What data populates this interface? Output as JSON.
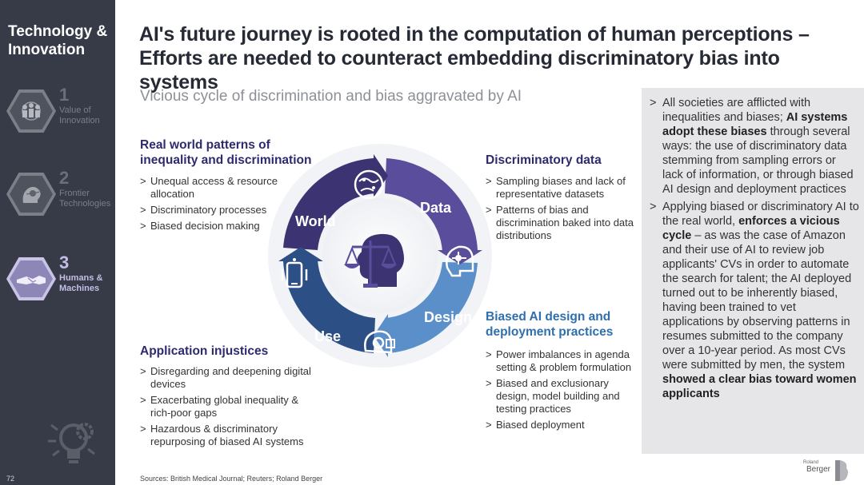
{
  "sidebar": {
    "title": "Technology & Innovation",
    "items": [
      {
        "num": "1",
        "label": "Value of Innovation",
        "active": false,
        "icon": "people-world-icon"
      },
      {
        "num": "2",
        "label": "Frontier Technologies",
        "active": false,
        "icon": "ai-brain-icon"
      },
      {
        "num": "3",
        "label": "Humans & Machines",
        "active": true,
        "icon": "handshake-icon"
      }
    ],
    "page_number": "72"
  },
  "header": {
    "title": "AI's future journey is rooted in the computation of human perceptions – Efforts are needed to counteract embedding discriminatory bias into systems",
    "subtitle": "Vicious cycle of discrimination and bias aggravated by AI"
  },
  "quadrants": {
    "world": {
      "title": "Real world patterns of inequality and discrimination",
      "bullets": [
        "Unequal access & resource allocation",
        "Discriminatory processes",
        "Biased decision making"
      ]
    },
    "data": {
      "title": "Discriminatory data",
      "bullets": [
        "Sampling biases and lack of representative datasets",
        "Patterns of bias and discrimination baked into data distributions"
      ]
    },
    "use": {
      "title": "Application injustices",
      "bullets": [
        "Disregarding and deepening digital devices",
        "Exacerbating global inequality & rich-poor gaps",
        "Hazardous & discriminatory repurposing of biased AI systems"
      ]
    },
    "design": {
      "title": "Biased AI design and deployment practices",
      "bullets": [
        "Power imbalances in agenda setting & problem formulation",
        "Biased and exclusionary design, model building and testing practices",
        "Biased deployment"
      ]
    }
  },
  "cycle": {
    "segments": [
      "World",
      "Data",
      "Design",
      "Use"
    ],
    "colors": {
      "world": "#3c3472",
      "data": "#5a4d9c",
      "design": "#5b8fc9",
      "use": "#2c4f86"
    }
  },
  "panel": {
    "p1": {
      "a": "All societies are afflicted with inequalities and biases; ",
      "b": "AI systems adopt these biases",
      "c": " through several ways: the use of discriminatory data stemming from sampling errors or lack of information, or through biased AI design and deployment practices"
    },
    "p2": {
      "a": "Applying biased or discriminatory AI to the real world, ",
      "b": "enforces a vicious cycle",
      "c": " – as was the case of Amazon and their use of AI to review job applicants' CVs in order to automate the search for talent; the AI deployed turned out to be inherently biased, having been trained to vet applications by observing patterns in resumes submitted to the company over a 10-year period. As most CVs were submitted by men, the system ",
      "d": "showed a clear bias toward women applicants"
    }
  },
  "footer": {
    "sources": "Sources: British Medical Journal; Reuters; Roland Berger",
    "logo_small": "Roland",
    "logo_text": "Berger"
  }
}
